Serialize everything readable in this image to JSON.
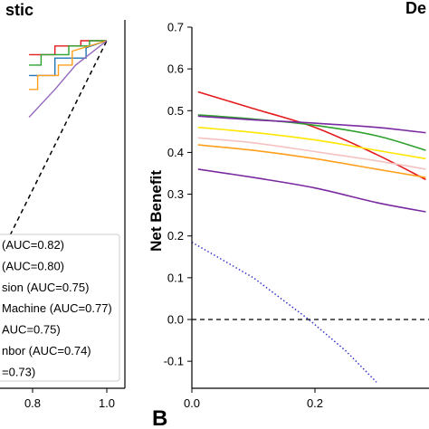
{
  "chart_data": [
    {
      "type": "line",
      "title": "stic",
      "xlabel": "",
      "ylabel": "",
      "xlim": [
        0.0,
        1.0
      ],
      "ylim": [
        0.0,
        1.0
      ],
      "x_ticks": [
        "0.8",
        "1.0"
      ],
      "grid": false,
      "legend": {
        "placement": "lower-right",
        "entries": [
          "(AUC=0.82)",
          "(AUC=0.80)",
          "sion (AUC=0.75)",
          "Machine (AUC=0.77)",
          "AUC=0.75)",
          "nbor (AUC=0.74)",
          "=0.73)"
        ]
      },
      "series": [
        {
          "color": "#e41a1c",
          "x": [
            0.55,
            0.7,
            0.7,
            0.85,
            0.85,
            1.0
          ],
          "y": [
            0.96,
            0.96,
            0.985,
            0.985,
            1.0,
            1.0
          ]
        },
        {
          "color": "#2ca02c",
          "x": [
            0.55,
            0.62,
            0.62,
            0.78,
            0.78,
            0.9,
            0.9,
            1.0
          ],
          "y": [
            0.93,
            0.93,
            0.96,
            0.96,
            0.985,
            0.985,
            1.0,
            1.0
          ]
        },
        {
          "color": "#1f77b4",
          "x": [
            0.55,
            0.7,
            0.7,
            0.88,
            0.88,
            1.0
          ],
          "y": [
            0.9,
            0.9,
            0.95,
            0.95,
            0.98,
            1.0
          ]
        },
        {
          "color": "#ff9f1c",
          "x": [
            0.55,
            0.6,
            0.6,
            0.72,
            0.72,
            0.8,
            0.8,
            1.0
          ],
          "y": [
            0.86,
            0.86,
            0.9,
            0.9,
            0.93,
            0.93,
            0.97,
            1.0
          ]
        },
        {
          "color": "#9467bd",
          "x": [
            0.55,
            0.7,
            0.82,
            1.0
          ],
          "y": [
            0.78,
            0.86,
            0.93,
            1.0
          ]
        }
      ],
      "reference_line": {
        "x": [
          0.0,
          1.0
        ],
        "y": [
          0.0,
          1.0
        ],
        "style": "dashed",
        "color": "#000000"
      }
    },
    {
      "type": "line",
      "title": "De",
      "panel_label": "B",
      "xlabel": "",
      "ylabel": "Net Benefit",
      "xlim": [
        0.0,
        0.45
      ],
      "ylim": [
        -0.17,
        0.7
      ],
      "x_ticks": [
        0.0,
        0.2
      ],
      "y_ticks": [
        -0.1,
        0.0,
        0.1,
        0.2,
        0.3,
        0.4,
        0.5,
        0.6,
        0.7
      ],
      "grid": false,
      "series": [
        {
          "color": "#e41a1c",
          "x": [
            0.01,
            0.1,
            0.2,
            0.3,
            0.38
          ],
          "y": [
            0.545,
            0.505,
            0.46,
            0.395,
            0.335
          ]
        },
        {
          "color": "#2ca02c",
          "x": [
            0.01,
            0.1,
            0.2,
            0.3,
            0.38
          ],
          "y": [
            0.49,
            0.48,
            0.465,
            0.44,
            0.405
          ]
        },
        {
          "color": "#7a2aa0",
          "x": [
            0.01,
            0.1,
            0.2,
            0.3,
            0.38
          ],
          "y": [
            0.487,
            0.478,
            0.47,
            0.46,
            0.447
          ]
        },
        {
          "color": "#ffe600",
          "x": [
            0.01,
            0.1,
            0.2,
            0.3,
            0.38
          ],
          "y": [
            0.46,
            0.448,
            0.43,
            0.405,
            0.385
          ]
        },
        {
          "color": "#f5c2c2",
          "x": [
            0.01,
            0.1,
            0.2,
            0.3,
            0.38
          ],
          "y": [
            0.435,
            0.423,
            0.402,
            0.38,
            0.36
          ]
        },
        {
          "color": "#ff9f1c",
          "x": [
            0.01,
            0.1,
            0.2,
            0.3,
            0.38
          ],
          "y": [
            0.418,
            0.405,
            0.385,
            0.36,
            0.34
          ]
        },
        {
          "color": "#7a2aa0",
          "x": [
            0.01,
            0.1,
            0.2,
            0.3,
            0.38
          ],
          "y": [
            0.36,
            0.34,
            0.315,
            0.28,
            0.258
          ]
        }
      ],
      "treat_all": {
        "color": "#3333cc",
        "style": "dotted",
        "x": [
          0.0,
          0.1,
          0.19,
          0.25,
          0.3
        ],
        "y": [
          0.185,
          0.1,
          0.0,
          -0.075,
          -0.15
        ]
      },
      "treat_none": {
        "color": "#000000",
        "style": "dashed",
        "y": 0.0
      }
    }
  ]
}
